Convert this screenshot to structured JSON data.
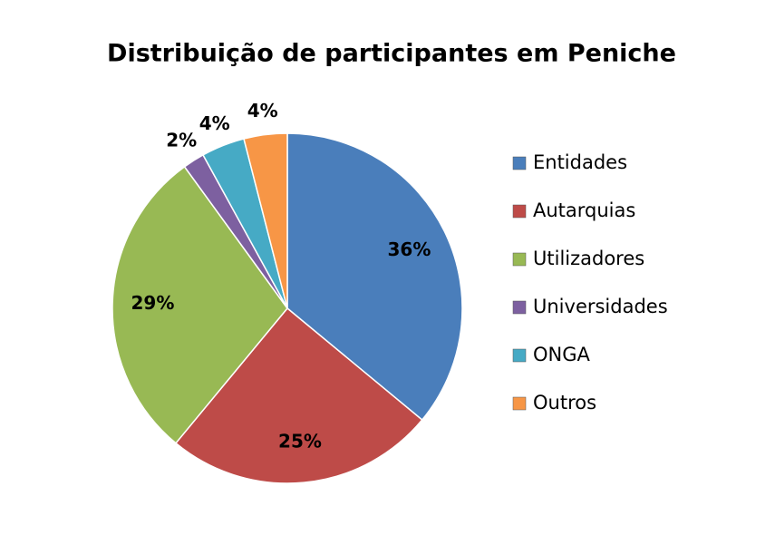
{
  "chart_data": {
    "type": "pie",
    "title": "Distribuição de participantes em Peniche",
    "categories": [
      "Entidades",
      "Autarquias",
      "Utilizadores",
      "Universidades",
      "ONGA",
      "Outros"
    ],
    "values": [
      36,
      25,
      29,
      2,
      4,
      4
    ],
    "value_labels": [
      "36%",
      "25%",
      "29%",
      "2%",
      "4%",
      "4%"
    ],
    "colors": [
      "#4a7ebb",
      "#be4b48",
      "#98b954",
      "#7d60a0",
      "#46aac5",
      "#f79646"
    ],
    "legend": "right"
  }
}
